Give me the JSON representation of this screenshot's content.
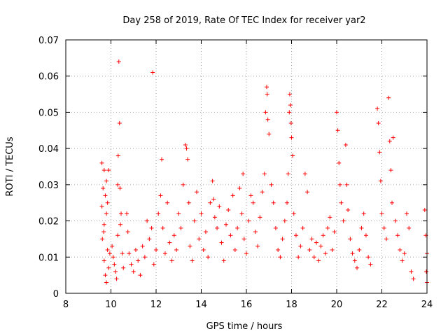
{
  "chart_data": {
    "type": "scatter",
    "title": "Day 258 of 2019, Rate Of TEC Index for receiver yar2",
    "xlabel": "GPS time / hours",
    "ylabel": "ROTI / TECUs",
    "xlim": [
      8,
      24
    ],
    "ylim": [
      0,
      0.07
    ],
    "xticks": [
      "8",
      "10",
      "12",
      "14",
      "16",
      "18",
      "20",
      "22",
      "24"
    ],
    "xtick_values": [
      8,
      10,
      12,
      14,
      16,
      18,
      20,
      22,
      24
    ],
    "yticks": [
      "0",
      "0.01",
      "0.02",
      "0.03",
      "0.04",
      "0.05",
      "0.06",
      "0.07"
    ],
    "ytick_values": [
      0,
      0.01,
      0.02,
      0.03,
      0.04,
      0.05,
      0.06,
      0.07
    ],
    "grid": true,
    "marker": "+",
    "color": "#ff0000",
    "series": [
      {
        "name": "ROTI",
        "points": [
          [
            9.6,
            0.036
          ],
          [
            9.7,
            0.034
          ],
          [
            9.8,
            0.031
          ],
          [
            9.65,
            0.029
          ],
          [
            9.75,
            0.027
          ],
          [
            9.6,
            0.024
          ],
          [
            9.8,
            0.022
          ],
          [
            9.7,
            0.019
          ],
          [
            9.62,
            0.015
          ],
          [
            9.85,
            0.012
          ],
          [
            9.7,
            0.009
          ],
          [
            9.9,
            0.007
          ],
          [
            9.75,
            0.005
          ],
          [
            9.8,
            0.003
          ],
          [
            9.95,
            0.011
          ],
          [
            9.68,
            0.017
          ],
          [
            9.85,
            0.025
          ],
          [
            9.9,
            0.034
          ],
          [
            10.05,
            0.013
          ],
          [
            10.1,
            0.01
          ],
          [
            10.15,
            0.008
          ],
          [
            10.2,
            0.006
          ],
          [
            10.25,
            0.004
          ],
          [
            10.3,
            0.03
          ],
          [
            10.32,
            0.038
          ],
          [
            10.35,
            0.064
          ],
          [
            10.38,
            0.047
          ],
          [
            10.4,
            0.029
          ],
          [
            10.45,
            0.022
          ],
          [
            10.3,
            0.016
          ],
          [
            10.5,
            0.011
          ],
          [
            10.55,
            0.007
          ],
          [
            10.42,
            0.019
          ],
          [
            10.7,
            0.022
          ],
          [
            10.75,
            0.017
          ],
          [
            10.8,
            0.011
          ],
          [
            10.9,
            0.008
          ],
          [
            11.0,
            0.006
          ],
          [
            11.1,
            0.012
          ],
          [
            11.2,
            0.009
          ],
          [
            11.3,
            0.005
          ],
          [
            11.4,
            0.013
          ],
          [
            11.5,
            0.01
          ],
          [
            11.6,
            0.02
          ],
          [
            11.7,
            0.015
          ],
          [
            11.8,
            0.018
          ],
          [
            11.85,
            0.061
          ],
          [
            11.9,
            0.008
          ],
          [
            12.0,
            0.012
          ],
          [
            12.1,
            0.022
          ],
          [
            12.2,
            0.027
          ],
          [
            12.25,
            0.037
          ],
          [
            12.3,
            0.018
          ],
          [
            12.4,
            0.011
          ],
          [
            12.5,
            0.025
          ],
          [
            12.6,
            0.014
          ],
          [
            12.7,
            0.009
          ],
          [
            12.8,
            0.016
          ],
          [
            12.9,
            0.012
          ],
          [
            13.0,
            0.022
          ],
          [
            13.1,
            0.018
          ],
          [
            13.2,
            0.03
          ],
          [
            13.3,
            0.041
          ],
          [
            13.35,
            0.04
          ],
          [
            13.4,
            0.037
          ],
          [
            13.45,
            0.025
          ],
          [
            13.5,
            0.013
          ],
          [
            13.6,
            0.009
          ],
          [
            13.7,
            0.02
          ],
          [
            13.8,
            0.028
          ],
          [
            13.9,
            0.015
          ],
          [
            14.0,
            0.022
          ],
          [
            14.1,
            0.012
          ],
          [
            14.2,
            0.017
          ],
          [
            14.3,
            0.01
          ],
          [
            14.4,
            0.025
          ],
          [
            14.5,
            0.031
          ],
          [
            14.55,
            0.026
          ],
          [
            14.6,
            0.021
          ],
          [
            14.7,
            0.018
          ],
          [
            14.8,
            0.024
          ],
          [
            14.9,
            0.014
          ],
          [
            15.0,
            0.009
          ],
          [
            15.1,
            0.019
          ],
          [
            15.2,
            0.023
          ],
          [
            15.3,
            0.016
          ],
          [
            15.4,
            0.027
          ],
          [
            15.5,
            0.012
          ],
          [
            15.6,
            0.018
          ],
          [
            15.7,
            0.029
          ],
          [
            15.8,
            0.022
          ],
          [
            15.85,
            0.033
          ],
          [
            15.9,
            0.015
          ],
          [
            16.0,
            0.011
          ],
          [
            16.1,
            0.02
          ],
          [
            16.2,
            0.027
          ],
          [
            16.3,
            0.025
          ],
          [
            16.4,
            0.017
          ],
          [
            16.5,
            0.013
          ],
          [
            16.6,
            0.021
          ],
          [
            16.7,
            0.028
          ],
          [
            16.8,
            0.033
          ],
          [
            16.85,
            0.05
          ],
          [
            16.9,
            0.057
          ],
          [
            16.92,
            0.055
          ],
          [
            16.95,
            0.048
          ],
          [
            17.0,
            0.044
          ],
          [
            17.1,
            0.03
          ],
          [
            17.2,
            0.025
          ],
          [
            17.3,
            0.018
          ],
          [
            17.4,
            0.012
          ],
          [
            17.5,
            0.01
          ],
          [
            17.6,
            0.015
          ],
          [
            17.7,
            0.02
          ],
          [
            17.8,
            0.025
          ],
          [
            17.85,
            0.033
          ],
          [
            17.9,
            0.05
          ],
          [
            17.92,
            0.055
          ],
          [
            17.95,
            0.052
          ],
          [
            17.98,
            0.047
          ],
          [
            18.0,
            0.043
          ],
          [
            18.05,
            0.038
          ],
          [
            18.1,
            0.022
          ],
          [
            18.2,
            0.016
          ],
          [
            18.3,
            0.01
          ],
          [
            18.4,
            0.013
          ],
          [
            18.5,
            0.018
          ],
          [
            18.6,
            0.033
          ],
          [
            18.7,
            0.028
          ],
          [
            18.8,
            0.012
          ],
          [
            18.9,
            0.015
          ],
          [
            19.0,
            0.01
          ],
          [
            19.1,
            0.014
          ],
          [
            19.2,
            0.009
          ],
          [
            19.3,
            0.013
          ],
          [
            19.4,
            0.016
          ],
          [
            19.5,
            0.011
          ],
          [
            19.6,
            0.018
          ],
          [
            19.7,
            0.021
          ],
          [
            19.8,
            0.012
          ],
          [
            19.9,
            0.017
          ],
          [
            20.0,
            0.05
          ],
          [
            20.05,
            0.045
          ],
          [
            20.1,
            0.036
          ],
          [
            20.15,
            0.03
          ],
          [
            20.2,
            0.025
          ],
          [
            20.3,
            0.02
          ],
          [
            20.4,
            0.041
          ],
          [
            20.45,
            0.03
          ],
          [
            20.5,
            0.023
          ],
          [
            20.6,
            0.015
          ],
          [
            20.7,
            0.011
          ],
          [
            20.8,
            0.009
          ],
          [
            20.9,
            0.007
          ],
          [
            21.0,
            0.012
          ],
          [
            21.1,
            0.018
          ],
          [
            21.2,
            0.022
          ],
          [
            21.3,
            0.016
          ],
          [
            21.4,
            0.01
          ],
          [
            21.5,
            0.008
          ],
          [
            21.8,
            0.051
          ],
          [
            21.85,
            0.047
          ],
          [
            21.9,
            0.039
          ],
          [
            21.95,
            0.031
          ],
          [
            22.0,
            0.022
          ],
          [
            22.1,
            0.018
          ],
          [
            22.2,
            0.015
          ],
          [
            22.3,
            0.054
          ],
          [
            22.35,
            0.042
          ],
          [
            22.4,
            0.034
          ],
          [
            22.45,
            0.025
          ],
          [
            22.5,
            0.043
          ],
          [
            22.6,
            0.02
          ],
          [
            22.7,
            0.016
          ],
          [
            22.8,
            0.012
          ],
          [
            22.9,
            0.009
          ],
          [
            23.0,
            0.011
          ],
          [
            23.1,
            0.022
          ],
          [
            23.2,
            0.018
          ],
          [
            23.3,
            0.006
          ],
          [
            23.4,
            0.004
          ],
          [
            23.9,
            0.023
          ],
          [
            23.95,
            0.016
          ],
          [
            24.0,
            0.011
          ],
          [
            23.97,
            0.006
          ],
          [
            24.0,
            0.003
          ]
        ]
      }
    ]
  }
}
